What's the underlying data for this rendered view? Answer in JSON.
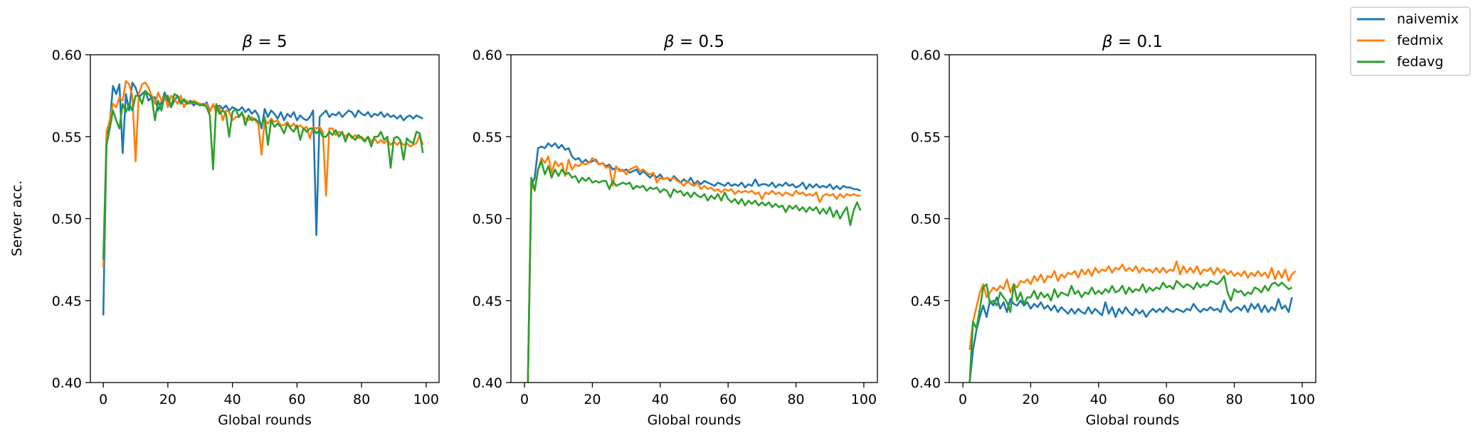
{
  "figure": {
    "ylabel": "Server acc.",
    "legend": {
      "placement": "top-right",
      "entries": [
        {
          "label": "naivemix",
          "color": "#1f77b4"
        },
        {
          "label": "fedmix",
          "color": "#ff7f0e"
        },
        {
          "label": "fedavg",
          "color": "#2ca02c"
        }
      ]
    }
  },
  "chart_data": [
    {
      "type": "line",
      "title_prefix": "β",
      "title_value": "= 5",
      "xlabel": "Global rounds",
      "ylabel": "Server acc.",
      "xlim": [
        -4,
        104
      ],
      "ylim": [
        0.4,
        0.6
      ],
      "xticks": [
        0,
        20,
        40,
        60,
        80,
        100
      ],
      "yticks": [
        "0.40",
        "0.45",
        "0.50",
        "0.55",
        "0.60"
      ],
      "grid": false,
      "series": [
        {
          "name": "naivemix",
          "color": "#1f77b4",
          "x0": 0,
          "values": [
            0.441,
            0.548,
            0.558,
            0.581,
            0.576,
            0.582,
            0.54,
            0.576,
            0.566,
            0.583,
            0.58,
            0.574,
            0.576,
            0.578,
            0.572,
            0.574,
            0.574,
            0.566,
            0.571,
            0.577,
            0.572,
            0.568,
            0.572,
            0.575,
            0.571,
            0.572,
            0.57,
            0.572,
            0.569,
            0.571,
            0.57,
            0.569,
            0.571,
            0.566,
            0.569,
            0.568,
            0.569,
            0.567,
            0.569,
            0.566,
            0.568,
            0.567,
            0.566,
            0.568,
            0.565,
            0.567,
            0.564,
            0.566,
            0.563,
            0.555,
            0.567,
            0.562,
            0.566,
            0.564,
            0.561,
            0.565,
            0.56,
            0.564,
            0.562,
            0.565,
            0.56,
            0.563,
            0.561,
            0.56,
            0.562,
            0.566,
            0.49,
            0.562,
            0.564,
            0.566,
            0.562,
            0.564,
            0.563,
            0.565,
            0.562,
            0.564,
            0.566,
            0.565,
            0.562,
            0.566,
            0.564,
            0.563,
            0.565,
            0.562,
            0.564,
            0.563,
            0.565,
            0.562,
            0.564,
            0.562,
            0.563,
            0.561,
            0.563,
            0.56,
            0.562,
            0.563,
            0.561,
            0.563,
            0.562,
            0.561
          ]
        },
        {
          "name": "fedmix",
          "color": "#ff7f0e",
          "x0": 0,
          "values": [
            0.47,
            0.553,
            0.56,
            0.57,
            0.568,
            0.574,
            0.572,
            0.584,
            0.582,
            0.575,
            0.535,
            0.576,
            0.582,
            0.583,
            0.58,
            0.575,
            0.57,
            0.577,
            0.572,
            0.575,
            0.568,
            0.575,
            0.573,
            0.57,
            0.575,
            0.568,
            0.572,
            0.57,
            0.572,
            0.571,
            0.57,
            0.57,
            0.57,
            0.565,
            0.57,
            0.565,
            0.568,
            0.56,
            0.566,
            0.565,
            0.56,
            0.562,
            0.562,
            0.564,
            0.561,
            0.56,
            0.562,
            0.56,
            0.558,
            0.539,
            0.56,
            0.558,
            0.561,
            0.559,
            0.56,
            0.557,
            0.557,
            0.559,
            0.556,
            0.558,
            0.555,
            0.557,
            0.555,
            0.556,
            0.549,
            0.556,
            0.555,
            0.556,
            0.553,
            0.514,
            0.555,
            0.555,
            0.551,
            0.553,
            0.552,
            0.55,
            0.552,
            0.549,
            0.551,
            0.549,
            0.55,
            0.548,
            0.55,
            0.547,
            0.549,
            0.546,
            0.548,
            0.546,
            0.548,
            0.545,
            0.547,
            0.545,
            0.547,
            0.545,
            0.546,
            0.544,
            0.545,
            0.546,
            0.551,
            0.545
          ]
        },
        {
          "name": "fedavg",
          "color": "#2ca02c",
          "x0": 0,
          "values": [
            0.475,
            0.545,
            0.555,
            0.566,
            0.56,
            0.555,
            0.57,
            0.565,
            0.57,
            0.566,
            0.575,
            0.575,
            0.57,
            0.578,
            0.576,
            0.574,
            0.56,
            0.572,
            0.566,
            0.575,
            0.575,
            0.568,
            0.576,
            0.575,
            0.57,
            0.573,
            0.57,
            0.571,
            0.571,
            0.57,
            0.569,
            0.57,
            0.568,
            0.563,
            0.53,
            0.57,
            0.564,
            0.566,
            0.564,
            0.55,
            0.565,
            0.567,
            0.562,
            0.565,
            0.557,
            0.563,
            0.56,
            0.561,
            0.559,
            0.557,
            0.562,
            0.545,
            0.56,
            0.556,
            0.558,
            0.556,
            0.552,
            0.558,
            0.555,
            0.553,
            0.557,
            0.548,
            0.555,
            0.553,
            0.555,
            0.555,
            0.552,
            0.554,
            0.55,
            0.55,
            0.553,
            0.551,
            0.554,
            0.55,
            0.553,
            0.547,
            0.552,
            0.55,
            0.548,
            0.551,
            0.549,
            0.547,
            0.55,
            0.544,
            0.55,
            0.55,
            0.553,
            0.548,
            0.55,
            0.531,
            0.549,
            0.55,
            0.548,
            0.536,
            0.549,
            0.547,
            0.546,
            0.553,
            0.552,
            0.54
          ]
        }
      ]
    },
    {
      "type": "line",
      "title_prefix": "β",
      "title_value": "= 0.5",
      "xlabel": "Global rounds",
      "ylabel": "",
      "xlim": [
        -4,
        104
      ],
      "ylim": [
        0.4,
        0.6
      ],
      "xticks": [
        0,
        20,
        40,
        60,
        80,
        100
      ],
      "yticks": [
        "0.40",
        "0.45",
        "0.50",
        "0.55",
        "0.60"
      ],
      "grid": false,
      "series": [
        {
          "name": "naivemix",
          "color": "#1f77b4",
          "x0": 1,
          "values": [
            0.4,
            0.52,
            0.525,
            0.543,
            0.544,
            0.543,
            0.546,
            0.544,
            0.546,
            0.543,
            0.545,
            0.542,
            0.543,
            0.538,
            0.536,
            0.537,
            0.534,
            0.536,
            0.534,
            0.535,
            0.536,
            0.533,
            0.534,
            0.532,
            0.533,
            0.53,
            0.531,
            0.53,
            0.529,
            0.53,
            0.528,
            0.529,
            0.53,
            0.527,
            0.529,
            0.527,
            0.525,
            0.527,
            0.525,
            0.527,
            0.524,
            0.525,
            0.523,
            0.526,
            0.524,
            0.522,
            0.524,
            0.522,
            0.525,
            0.521,
            0.523,
            0.521,
            0.523,
            0.522,
            0.521,
            0.52,
            0.522,
            0.521,
            0.52,
            0.522,
            0.52,
            0.521,
            0.52,
            0.522,
            0.519,
            0.521,
            0.52,
            0.524,
            0.52,
            0.521,
            0.521,
            0.52,
            0.522,
            0.519,
            0.521,
            0.52,
            0.522,
            0.52,
            0.521,
            0.519,
            0.52,
            0.522,
            0.518,
            0.521,
            0.519,
            0.521,
            0.519,
            0.52,
            0.519,
            0.521,
            0.518,
            0.52,
            0.518,
            0.52,
            0.519,
            0.519,
            0.518,
            0.518,
            0.517
          ]
        },
        {
          "name": "fedmix",
          "color": "#ff7f0e",
          "x0": 1,
          "values": [
            0.4,
            0.52,
            0.518,
            0.53,
            0.537,
            0.534,
            0.538,
            0.528,
            0.535,
            0.532,
            0.534,
            0.526,
            0.536,
            0.53,
            0.533,
            0.532,
            0.534,
            0.533,
            0.534,
            0.537,
            0.535,
            0.533,
            0.534,
            0.531,
            0.532,
            0.52,
            0.532,
            0.529,
            0.53,
            0.527,
            0.53,
            0.531,
            0.532,
            0.529,
            0.53,
            0.528,
            0.527,
            0.528,
            0.522,
            0.525,
            0.524,
            0.525,
            0.524,
            0.525,
            0.523,
            0.522,
            0.52,
            0.523,
            0.521,
            0.52,
            0.522,
            0.518,
            0.52,
            0.518,
            0.519,
            0.517,
            0.518,
            0.516,
            0.518,
            0.517,
            0.518,
            0.515,
            0.517,
            0.516,
            0.517,
            0.516,
            0.517,
            0.515,
            0.516,
            0.512,
            0.516,
            0.515,
            0.517,
            0.515,
            0.516,
            0.514,
            0.516,
            0.515,
            0.514,
            0.517,
            0.515,
            0.516,
            0.514,
            0.515,
            0.514,
            0.516,
            0.51,
            0.514,
            0.515,
            0.514,
            0.515,
            0.512,
            0.515,
            0.513,
            0.515,
            0.514,
            0.515,
            0.514,
            0.514
          ]
        },
        {
          "name": "fedavg",
          "color": "#2ca02c",
          "x0": 1,
          "values": [
            0.4,
            0.525,
            0.517,
            0.53,
            0.535,
            0.527,
            0.532,
            0.525,
            0.53,
            0.526,
            0.53,
            0.527,
            0.528,
            0.525,
            0.526,
            0.522,
            0.525,
            0.523,
            0.525,
            0.522,
            0.523,
            0.522,
            0.523,
            0.523,
            0.518,
            0.523,
            0.52,
            0.521,
            0.522,
            0.521,
            0.522,
            0.518,
            0.52,
            0.519,
            0.52,
            0.517,
            0.519,
            0.518,
            0.519,
            0.516,
            0.518,
            0.517,
            0.513,
            0.518,
            0.516,
            0.517,
            0.514,
            0.516,
            0.513,
            0.516,
            0.514,
            0.513,
            0.515,
            0.511,
            0.514,
            0.512,
            0.515,
            0.511,
            0.516,
            0.512,
            0.51,
            0.512,
            0.509,
            0.512,
            0.508,
            0.511,
            0.509,
            0.511,
            0.508,
            0.51,
            0.508,
            0.51,
            0.507,
            0.509,
            0.507,
            0.508,
            0.504,
            0.508,
            0.506,
            0.508,
            0.505,
            0.507,
            0.504,
            0.507,
            0.505,
            0.507,
            0.503,
            0.506,
            0.503,
            0.507,
            0.501,
            0.505,
            0.5,
            0.504,
            0.507,
            0.496,
            0.505,
            0.51,
            0.505
          ]
        }
      ]
    },
    {
      "type": "line",
      "title_prefix": "β",
      "title_value": "= 0.1",
      "xlabel": "Global rounds",
      "ylabel": "",
      "xlim": [
        -4,
        104
      ],
      "ylim": [
        0.4,
        0.6
      ],
      "xticks": [
        0,
        20,
        40,
        60,
        80,
        100
      ],
      "yticks": [
        "0.40",
        "0.45",
        "0.50",
        "0.55",
        "0.60"
      ],
      "grid": false,
      "series": [
        {
          "name": "naivemix",
          "color": "#1f77b4",
          "x0": 2,
          "values": [
            0.4,
            0.42,
            0.432,
            0.44,
            0.447,
            0.44,
            0.45,
            0.447,
            0.452,
            0.445,
            0.449,
            0.443,
            0.451,
            0.448,
            0.447,
            0.45,
            0.447,
            0.449,
            0.445,
            0.448,
            0.446,
            0.449,
            0.445,
            0.447,
            0.444,
            0.447,
            0.443,
            0.446,
            0.444,
            0.442,
            0.445,
            0.442,
            0.445,
            0.443,
            0.442,
            0.446,
            0.442,
            0.445,
            0.443,
            0.441,
            0.449,
            0.442,
            0.446,
            0.44,
            0.445,
            0.442,
            0.446,
            0.443,
            0.441,
            0.445,
            0.442,
            0.444,
            0.44,
            0.443,
            0.445,
            0.443,
            0.445,
            0.443,
            0.446,
            0.444,
            0.443,
            0.445,
            0.444,
            0.443,
            0.445,
            0.444,
            0.448,
            0.445,
            0.443,
            0.445,
            0.444,
            0.446,
            0.444,
            0.445,
            0.443,
            0.45,
            0.445,
            0.443,
            0.445,
            0.446,
            0.444,
            0.447,
            0.443,
            0.448,
            0.445,
            0.448,
            0.443,
            0.447,
            0.443,
            0.446,
            0.444,
            0.451,
            0.445,
            0.447,
            0.443,
            0.452
          ]
        },
        {
          "name": "fedmix",
          "color": "#ff7f0e",
          "x0": 2,
          "values": [
            0.42,
            0.437,
            0.446,
            0.455,
            0.46,
            0.452,
            0.455,
            0.458,
            0.456,
            0.459,
            0.457,
            0.463,
            0.455,
            0.46,
            0.458,
            0.462,
            0.461,
            0.463,
            0.46,
            0.465,
            0.462,
            0.466,
            0.461,
            0.465,
            0.464,
            0.468,
            0.462,
            0.466,
            0.464,
            0.467,
            0.466,
            0.468,
            0.464,
            0.469,
            0.466,
            0.469,
            0.465,
            0.47,
            0.467,
            0.469,
            0.468,
            0.471,
            0.467,
            0.47,
            0.469,
            0.472,
            0.468,
            0.47,
            0.468,
            0.471,
            0.467,
            0.47,
            0.468,
            0.469,
            0.467,
            0.47,
            0.467,
            0.47,
            0.467,
            0.469,
            0.468,
            0.474,
            0.466,
            0.471,
            0.467,
            0.47,
            0.467,
            0.471,
            0.466,
            0.469,
            0.468,
            0.47,
            0.466,
            0.47,
            0.467,
            0.469,
            0.466,
            0.468,
            0.465,
            0.467,
            0.465,
            0.468,
            0.464,
            0.467,
            0.465,
            0.468,
            0.465,
            0.467,
            0.464,
            0.47,
            0.463,
            0.468,
            0.464,
            0.469,
            0.462,
            0.466,
            0.468
          ]
        },
        {
          "name": "fedavg",
          "color": "#2ca02c",
          "x0": 2,
          "values": [
            0.4,
            0.437,
            0.433,
            0.445,
            0.458,
            0.46,
            0.448,
            0.45,
            0.447,
            0.455,
            0.452,
            0.449,
            0.443,
            0.46,
            0.45,
            0.455,
            0.448,
            0.452,
            0.452,
            0.456,
            0.451,
            0.455,
            0.452,
            0.454,
            0.45,
            0.457,
            0.452,
            0.455,
            0.454,
            0.453,
            0.459,
            0.454,
            0.456,
            0.452,
            0.455,
            0.454,
            0.458,
            0.454,
            0.456,
            0.454,
            0.457,
            0.455,
            0.459,
            0.455,
            0.456,
            0.459,
            0.454,
            0.458,
            0.455,
            0.457,
            0.456,
            0.46,
            0.455,
            0.458,
            0.456,
            0.458,
            0.457,
            0.461,
            0.458,
            0.459,
            0.457,
            0.462,
            0.46,
            0.458,
            0.46,
            0.459,
            0.457,
            0.461,
            0.458,
            0.46,
            0.459,
            0.462,
            0.461,
            0.46,
            0.462,
            0.465,
            0.455,
            0.45,
            0.457,
            0.455,
            0.456,
            0.453,
            0.455,
            0.454,
            0.458,
            0.457,
            0.455,
            0.459,
            0.456,
            0.46,
            0.461,
            0.459,
            0.461,
            0.459,
            0.457,
            0.458
          ]
        }
      ]
    }
  ]
}
